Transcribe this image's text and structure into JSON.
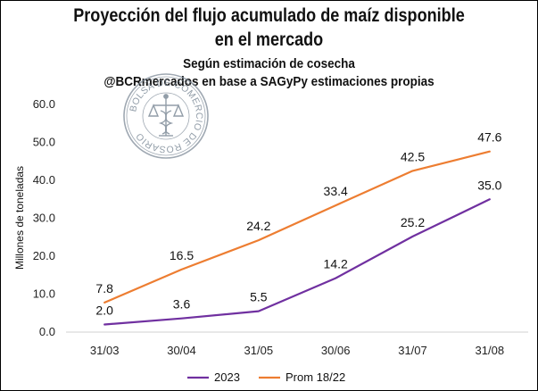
{
  "chart_data": {
    "type": "line",
    "title": "Proyección del flujo acumulado de maíz disponible en el mercado",
    "title_lines": [
      "Proyección del flujo acumulado de maíz disponible",
      "en el mercado"
    ],
    "subtitle_lines": [
      "Según estimación de cosecha",
      "@BCRmercados en base a SAGyPy estimaciones propias"
    ],
    "ylabel": "Millones de toneladas",
    "xlabel": "",
    "categories": [
      "31/03",
      "30/04",
      "31/05",
      "30/06",
      "31/07",
      "31/08"
    ],
    "ylim": [
      0,
      60
    ],
    "yticks": [
      "0.0",
      "10.0",
      "20.0",
      "30.0",
      "40.0",
      "50.0",
      "60.0"
    ],
    "series": [
      {
        "name": "2023",
        "color": "#7030a0",
        "values": [
          2.0,
          3.6,
          5.5,
          14.2,
          25.2,
          35.0
        ],
        "labels": [
          "2.0",
          "3.6",
          "5.5",
          "14.2",
          "25.2",
          "35.0"
        ]
      },
      {
        "name": "Prom 18/22",
        "color": "#ed7d31",
        "values": [
          7.8,
          16.5,
          24.2,
          33.4,
          42.5,
          47.6
        ],
        "labels": [
          "7.8",
          "16.5",
          "24.2",
          "33.4",
          "42.5",
          "47.6"
        ]
      }
    ],
    "grid": false,
    "legend": "bottom"
  },
  "watermark": {
    "text": "BOLSA DE COMERCIO DE ROSARIO",
    "icon": "caduceus-scales-icon"
  }
}
